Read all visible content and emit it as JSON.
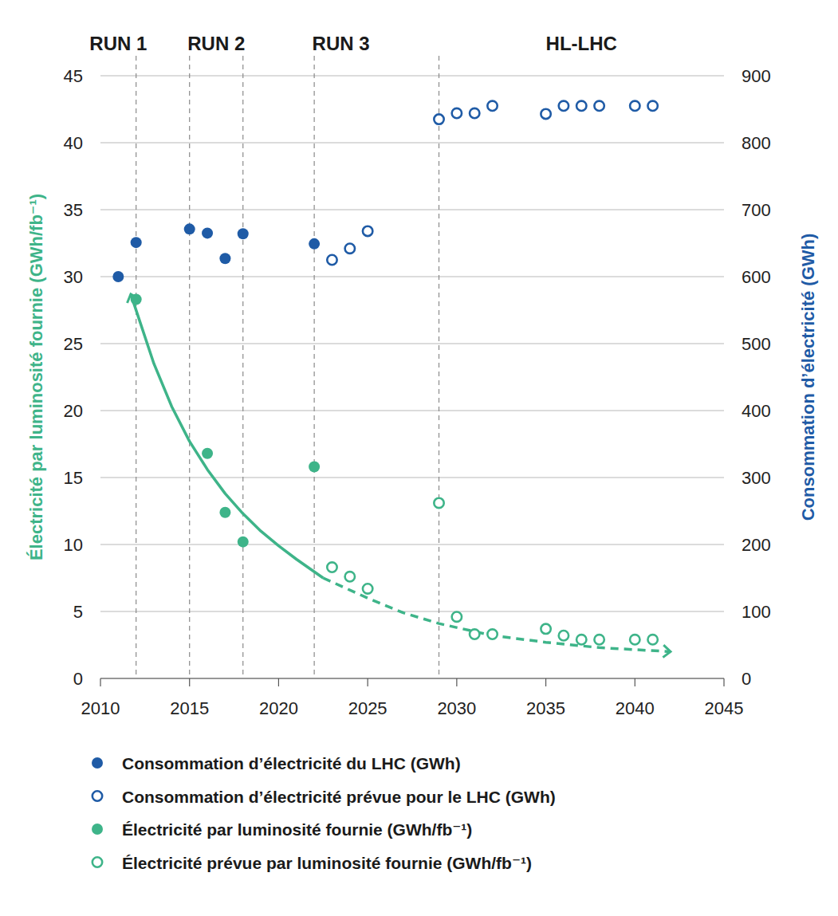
{
  "chart_data": {
    "type": "scatter",
    "xlim": [
      2010,
      2045
    ],
    "xticks": [
      2010,
      2015,
      2020,
      2025,
      2030,
      2035,
      2040,
      2045
    ],
    "ylim": [
      0,
      45
    ],
    "yticks": [
      0,
      5,
      10,
      15,
      20,
      25,
      30,
      35,
      40,
      45
    ],
    "y2lim": [
      0,
      900
    ],
    "y2ticks": [
      0,
      100,
      200,
      300,
      400,
      500,
      600,
      700,
      800,
      900
    ],
    "y_label": "Électricité par luminosité fournie (GWh/fb⁻¹)",
    "y2_label": "Consommation d’électricité (GWh)",
    "grid": true,
    "legend": "bottom",
    "periods": [
      {
        "label": "RUN 1",
        "x": 2011
      },
      {
        "label": "RUN 2",
        "x": 2016.5
      },
      {
        "label": "RUN 3",
        "x": 2023.5
      },
      {
        "label": "HL-LHC",
        "x": 2037
      }
    ],
    "period_boundaries": [
      2012,
      2015,
      2018,
      2022,
      2029
    ],
    "series": [
      {
        "name": "Consommation d’électricité du LHC (GWh)",
        "color": "#1f5ba6",
        "marker": "filled",
        "axis": "y2",
        "x": [
          2011,
          2012,
          2015,
          2016,
          2017,
          2018,
          2022
        ],
        "values": [
          600,
          651,
          671,
          665,
          627,
          664,
          649
        ]
      },
      {
        "name": "Consommation d’électricité prévue pour le LHC (GWh)",
        "color": "#1f5ba6",
        "marker": "open",
        "axis": "y2",
        "x": [
          2023,
          2024,
          2025,
          2029,
          2030,
          2031,
          2032,
          2035,
          2036,
          2037,
          2038,
          2040,
          2041
        ],
        "values": [
          625,
          642,
          668,
          835,
          844,
          844,
          855,
          843,
          855,
          855,
          855,
          855,
          855
        ]
      },
      {
        "name": "Électricité par luminosité fournie (GWh/fb⁻¹)",
        "color": "#3eb489",
        "marker": "filled",
        "axis": "y",
        "x": [
          2012,
          2016,
          2017,
          2018,
          2022
        ],
        "values": [
          28.3,
          16.8,
          12.4,
          10.2,
          15.8
        ]
      },
      {
        "name": "Électricité prévue par luminosité fournie (GWh/fb⁻¹)",
        "color": "#3eb489",
        "marker": "open",
        "axis": "y",
        "x": [
          2023,
          2024,
          2025,
          2029,
          2030,
          2031,
          2032,
          2035,
          2036,
          2037,
          2038,
          2040,
          2041
        ],
        "values": [
          8.3,
          7.6,
          6.7,
          13.1,
          4.6,
          3.3,
          3.3,
          3.7,
          3.2,
          2.9,
          2.9,
          2.9,
          2.9
        ]
      }
    ],
    "trend": [
      {
        "line_style": "solid",
        "color": "#3eb489",
        "x": [
          2011.7,
          2013,
          2014,
          2015,
          2016,
          2017,
          2018,
          2019,
          2020,
          2021,
          2022.5
        ],
        "values": [
          28.7,
          23.5,
          20.3,
          17.7,
          15.6,
          13.8,
          12.3,
          11,
          9.9,
          8.9,
          7.5
        ]
      },
      {
        "line_style": "dashed",
        "color": "#3eb489",
        "x": [
          2022.5,
          2025,
          2027,
          2029,
          2032,
          2035,
          2038,
          2042
        ],
        "values": [
          7.5,
          6.0,
          4.9,
          4.1,
          3.2,
          2.7,
          2.3,
          2.0
        ]
      }
    ]
  }
}
